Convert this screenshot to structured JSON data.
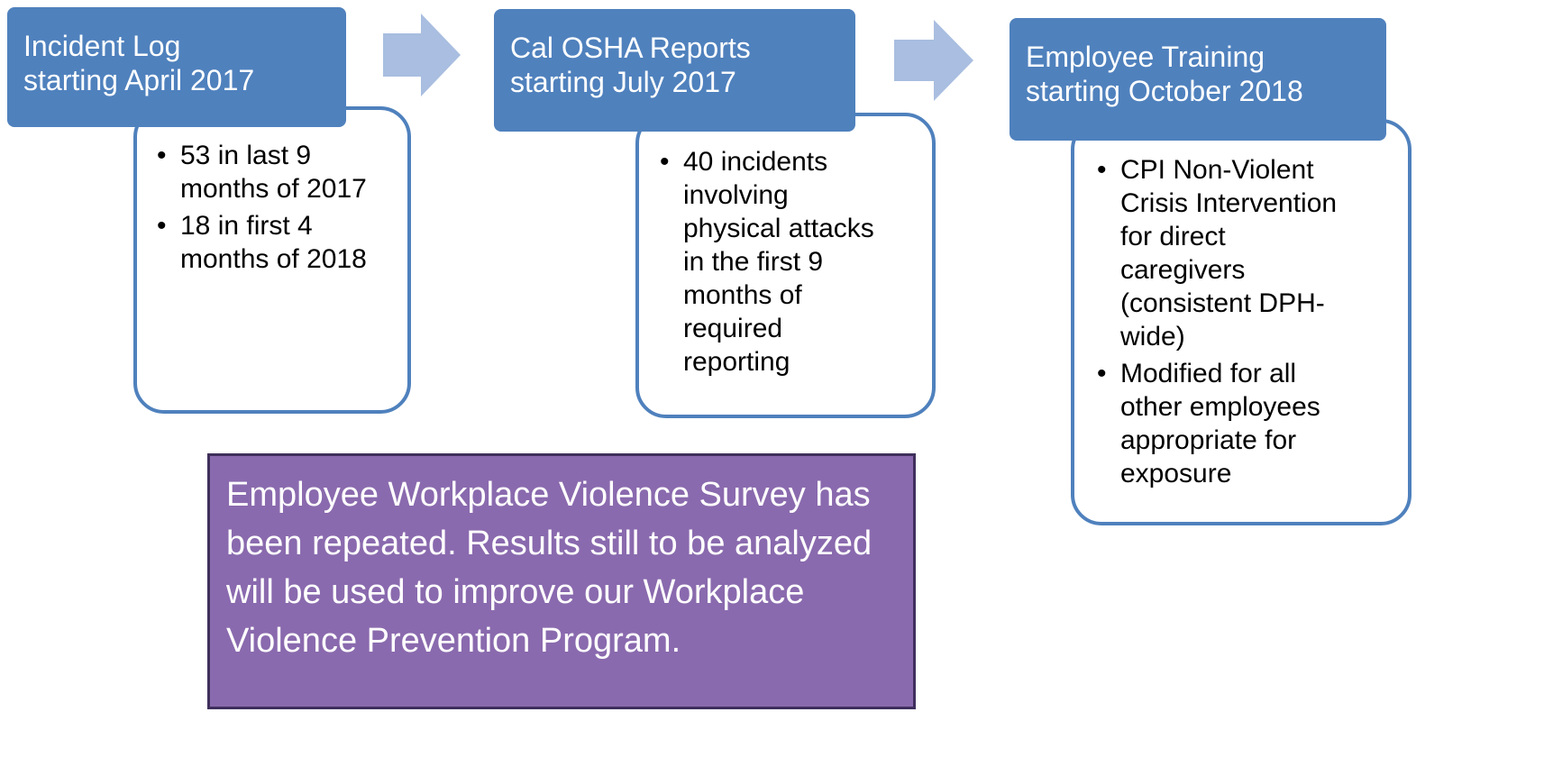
{
  "steps": [
    {
      "title_lines": [
        "Incident Log",
        "starting April 2017"
      ],
      "bullets": [
        "53 in last 9 months of 2017",
        "18 in first 4 months of 2018"
      ]
    },
    {
      "title_lines": [
        "Cal OSHA Reports",
        "starting July 2017"
      ],
      "bullets": [
        "40 incidents involving physical attacks in the first 9 months of required reporting"
      ]
    },
    {
      "title_lines": [
        "Employee Training",
        "starting October 2018"
      ],
      "bullets": [
        "CPI Non-Violent Crisis Intervention for direct caregivers (consistent DPH-wide)",
        "Modified for all other employees appropriate for exposure"
      ]
    }
  ],
  "note": "Employee Workplace Violence Survey has been repeated. Results still to be analyzed will be used to improve our Workplace Violence Prevention Program."
}
